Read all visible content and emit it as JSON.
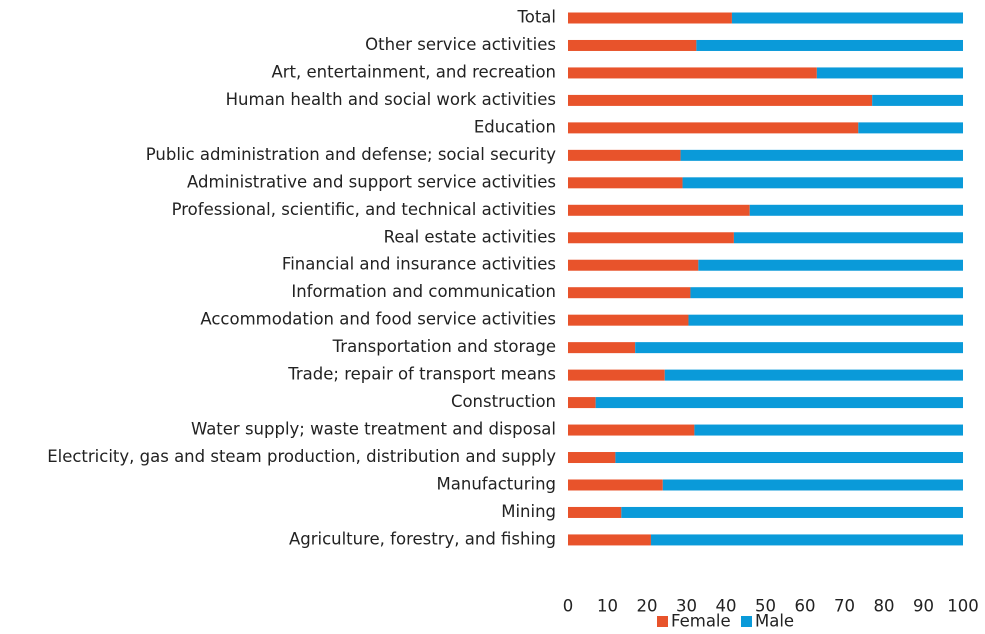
{
  "chart_data": {
    "type": "stacked_bar_horizontal",
    "categories": [
      "Total",
      "Other service activities",
      "Art, entertainment, and recreation",
      "Human health and social work activities",
      "Education",
      "Public administration and defense; social security",
      "Administrative and support service activities",
      "Professional, scientific, and technical activities",
      "Real estate activities",
      "Financial and insurance activities",
      "Information and communication",
      "Accommodation and food service activities",
      "Transportation and storage",
      "Trade; repair of transport means",
      "Construction",
      "Water supply; waste treatment and disposal",
      "Electricity, gas and steam production, distribution and supply",
      "Manufacturing",
      "Mining",
      "Agriculture, forestry, and fishing"
    ],
    "series": [
      {
        "name": "Female",
        "color": "#e8532b",
        "values": [
          41.5,
          32.5,
          63,
          77,
          73.5,
          28.5,
          29,
          46,
          42,
          33,
          31,
          30.5,
          17,
          24.5,
          7,
          32,
          12,
          24,
          13.5,
          21
        ]
      },
      {
        "name": "Male",
        "color": "#0a9ad9",
        "values": [
          58.5,
          67.5,
          37,
          23,
          26.5,
          71.5,
          71,
          54,
          58,
          67,
          69,
          69.5,
          83,
          75.5,
          93,
          68,
          88,
          76,
          86.5,
          79
        ]
      }
    ],
    "xlim": [
      0,
      100
    ],
    "xticks": [
      0,
      10,
      20,
      30,
      40,
      50,
      60,
      70,
      80,
      90,
      100
    ],
    "legend": "bottom"
  }
}
